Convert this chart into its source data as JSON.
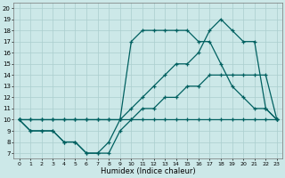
{
  "xlabel": "Humidex (Indice chaleur)",
  "xlim": [
    -0.5,
    23.5
  ],
  "ylim": [
    6.5,
    20.5
  ],
  "xticks": [
    0,
    1,
    2,
    3,
    4,
    5,
    6,
    7,
    8,
    9,
    10,
    11,
    12,
    13,
    14,
    15,
    16,
    17,
    18,
    19,
    20,
    21,
    22,
    23
  ],
  "yticks": [
    7,
    8,
    9,
    10,
    11,
    12,
    13,
    14,
    15,
    16,
    17,
    18,
    19,
    20
  ],
  "bg_color": "#cce8e8",
  "line_color": "#006060",
  "grid_color": "#aacece",
  "line1_x": [
    0,
    1,
    2,
    3,
    4,
    5,
    6,
    7,
    8,
    9,
    10,
    11,
    12,
    13,
    14,
    15,
    16,
    17,
    18,
    19,
    20,
    21,
    22,
    23
  ],
  "line1_y": [
    10,
    9,
    9,
    9,
    8,
    8,
    7,
    7,
    7,
    9,
    10,
    10,
    10,
    10,
    10,
    10,
    10,
    10,
    10,
    10,
    10,
    10,
    10,
    10
  ],
  "line2_x": [
    0,
    1,
    2,
    3,
    4,
    5,
    6,
    7,
    8,
    9,
    10,
    11,
    12,
    13,
    14,
    15,
    16,
    17,
    18,
    19,
    20,
    21,
    22,
    23
  ],
  "line2_y": [
    10,
    10,
    10,
    10,
    10,
    10,
    10,
    10,
    10,
    10,
    10,
    11,
    11,
    12,
    12,
    13,
    13,
    14,
    14,
    14,
    14,
    14,
    14,
    10
  ],
  "line3_x": [
    0,
    1,
    2,
    3,
    4,
    5,
    6,
    7,
    8,
    9,
    10,
    11,
    12,
    13,
    14,
    15,
    16,
    17,
    18,
    19,
    20,
    21,
    22,
    23
  ],
  "line3_y": [
    10,
    9,
    9,
    9,
    8,
    8,
    7,
    7,
    8,
    10,
    17,
    18,
    18,
    18,
    18,
    18,
    17,
    17,
    15,
    13,
    12,
    11,
    11,
    10
  ],
  "line4_x": [
    0,
    1,
    2,
    3,
    4,
    5,
    6,
    7,
    8,
    9,
    10,
    11,
    12,
    13,
    14,
    15,
    16,
    17,
    18,
    19,
    20,
    21,
    22,
    23
  ],
  "line4_y": [
    10,
    10,
    10,
    10,
    10,
    10,
    10,
    10,
    10,
    10,
    11,
    12,
    13,
    14,
    15,
    15,
    16,
    18,
    19,
    18,
    17,
    17,
    11,
    10
  ]
}
